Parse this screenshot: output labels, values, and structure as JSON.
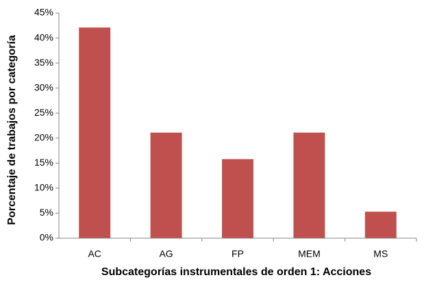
{
  "chart_data": {
    "type": "bar",
    "x_label": "Subcategorías instrumentales de orden 1: Acciones",
    "y_label": "Porcentaje de trabajos por categoría",
    "categories": [
      "AC",
      "AG",
      "FP",
      "MEM",
      "MS"
    ],
    "values": [
      42.1,
      21.1,
      15.8,
      21.1,
      5.3
    ],
    "color": "#c0504d",
    "ylim": [
      0,
      45
    ],
    "yticks": [
      {
        "value": 0,
        "label": "0%"
      },
      {
        "value": 5,
        "label": "5%"
      },
      {
        "value": 10,
        "label": "10%"
      },
      {
        "value": 15,
        "label": "15%"
      },
      {
        "value": 20,
        "label": "20%"
      },
      {
        "value": 25,
        "label": "25%"
      },
      {
        "value": 30,
        "label": "30%"
      },
      {
        "value": 35,
        "label": "35%"
      },
      {
        "value": 40,
        "label": "40%"
      },
      {
        "value": 45,
        "label": "45%"
      }
    ],
    "grid": false
  }
}
